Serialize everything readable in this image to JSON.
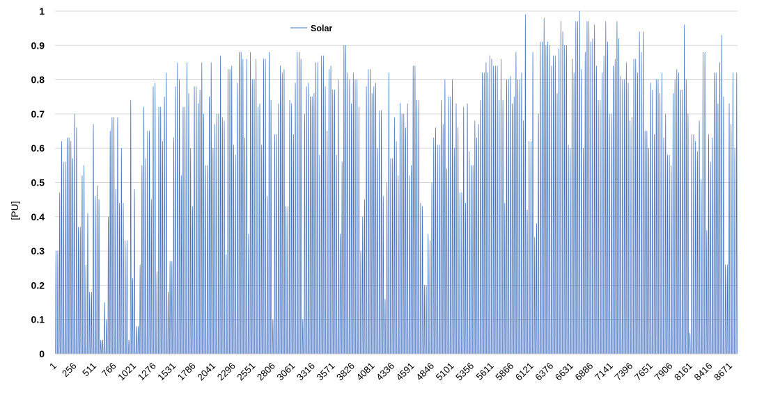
{
  "chart_data": {
    "type": "line",
    "title": "",
    "xlabel": "",
    "ylabel": "[PU]",
    "ylim": [
      0,
      1
    ],
    "xlim": [
      1,
      8760
    ],
    "yticks": [
      0,
      0.1,
      0.2,
      0.3,
      0.4,
      0.5,
      0.6,
      0.7,
      0.8,
      0.9,
      1
    ],
    "ytick_labels": [
      "0",
      "0.1",
      "0.2",
      "0.3",
      "0.4",
      "0.5",
      "0.6",
      "0.7",
      "0.8",
      "0.9",
      "1"
    ],
    "xtick_labels": [
      "1",
      "256",
      "511",
      "766",
      "1021",
      "1276",
      "1531",
      "1786",
      "2041",
      "2296",
      "2551",
      "2806",
      "3061",
      "3316",
      "3571",
      "3826",
      "4081",
      "4336",
      "4591",
      "4846",
      "5101",
      "5356",
      "5611",
      "5866",
      "6121",
      "6376",
      "6631",
      "6886",
      "7141",
      "7396",
      "7651",
      "7906",
      "8161",
      "8416",
      "8671"
    ],
    "xtick_values": [
      1,
      256,
      511,
      766,
      1021,
      1276,
      1531,
      1786,
      2041,
      2296,
      2551,
      2806,
      3061,
      3316,
      3571,
      3826,
      4081,
      4336,
      4591,
      4846,
      5101,
      5356,
      5611,
      5866,
      6121,
      6376,
      6631,
      6886,
      7141,
      7396,
      7651,
      7906,
      8161,
      8416,
      8671
    ],
    "grid": true,
    "legend_position": "top-center",
    "series": [
      {
        "name": "Solar",
        "color": "#4472C4",
        "daily_peaks": [
          0.3,
          0.47,
          0.62,
          0.56,
          0.56,
          0.63,
          0.62,
          0.57,
          0.7,
          0.66,
          0.37,
          0.52,
          0.55,
          0.26,
          0.41,
          0.18,
          0.67,
          0.46,
          0.49,
          0.45,
          0.04,
          0.15,
          0.1,
          0.4,
          0.65,
          0.69,
          0.48,
          0.69,
          0.44,
          0.6,
          0.44,
          0.33,
          0.04,
          0.74,
          0.22,
          0.48,
          0.08,
          0.26,
          0.55,
          0.72,
          0.57,
          0.65,
          0.45,
          0.78,
          0.79,
          0.24,
          0.72,
          0.62,
          0.75,
          0.82,
          0.18,
          0.27,
          0.63,
          0.78,
          0.85,
          0.8,
          0.52,
          0.72,
          0.85,
          0.76,
          0.6,
          0.43,
          0.78,
          0.73,
          0.77,
          0.85,
          0.7,
          0.55,
          0.75,
          0.85,
          0.6,
          0.67,
          0.7,
          0.87,
          0.69,
          0.68,
          0.29,
          0.83,
          0.84,
          0.61,
          0.58,
          0.79,
          0.88,
          0.86,
          0.63,
          0.86,
          0.35,
          0.88,
          0.8,
          0.86,
          0.72,
          0.73,
          0.61,
          0.86,
          0.46,
          0.88,
          0.74,
          0.1,
          0.64,
          0.73,
          0.84,
          0.82,
          0.83,
          0.43,
          0.74,
          0.73,
          0.64,
          0.79,
          0.88,
          0.86,
          0.1,
          0.7,
          0.78,
          0.79,
          0.75,
          0.76,
          0.85,
          0.85,
          0.58,
          0.87,
          0.78,
          0.65,
          0.83,
          0.84,
          0.77,
          0.58,
          0.8,
          0.35,
          0.56,
          0.9,
          0.82,
          0.8,
          0.73,
          0.82,
          0.8,
          0.72,
          0.3,
          0.4,
          0.45,
          0.78,
          0.83,
          0.76,
          0.78,
          0.79,
          0.6,
          0.71,
          0.46,
          0.16,
          0.5,
          0.82,
          0.57,
          0.69,
          0.62,
          0.52,
          0.73,
          0.7,
          0.66,
          0.73,
          0.52,
          0.55,
          0.84,
          0.74,
          0.74,
          0.44,
          0.43,
          0.2,
          0.35,
          0.33,
          0.5,
          0.63,
          0.66,
          0.61,
          0.74,
          0.67,
          0.8,
          0.54,
          0.75,
          0.8,
          0.6,
          0.73,
          0.66,
          0.47,
          0.72,
          0.44,
          0.73,
          0.59,
          0.55,
          0.68,
          0.63,
          0.67,
          0.74,
          0.82,
          0.85,
          0.82,
          0.87,
          0.86,
          0.84,
          0.84,
          0.74,
          0.86,
          0.74,
          0.44,
          0.8,
          0.81,
          0.73,
          0.75,
          0.88,
          0.8,
          0.82,
          0.68,
          0.99,
          0.42,
          0.62,
          0.88,
          0.34,
          0.38,
          0.7,
          0.91,
          0.98,
          0.9,
          0.91,
          0.9,
          0.84,
          0.87,
          0.76,
          0.89,
          0.97,
          0.94,
          0.9,
          0.61,
          0.6,
          0.86,
          0.82,
          0.97,
          1.0,
          0.83,
          0.6,
          0.88,
          0.97,
          0.91,
          0.92,
          0.96,
          0.84,
          0.74,
          0.82,
          0.87,
          0.97,
          0.91,
          0.7,
          0.84,
          0.86,
          0.97,
          0.92,
          0.81,
          0.8,
          0.85,
          0.79,
          0.68,
          0.69,
          0.86,
          0.82,
          0.94,
          0.88,
          0.94,
          0.65,
          0.6,
          0.79,
          0.77,
          0.64,
          0.8,
          0.76,
          0.82,
          0.63,
          0.7,
          0.58,
          0.55,
          0.76,
          0.8,
          0.83,
          0.82,
          0.77,
          0.96,
          0.8,
          0.7,
          0.06,
          0.64,
          0.62,
          0.59,
          0.68,
          0.51,
          0.88,
          0.36,
          0.64,
          0.56,
          0.63,
          0.82,
          0.73,
          0.85,
          0.93,
          0.75,
          0.26,
          0.73,
          0.67,
          0.82,
          0.6,
          0.82
        ]
      }
    ]
  },
  "legend": {
    "label": "Solar"
  }
}
